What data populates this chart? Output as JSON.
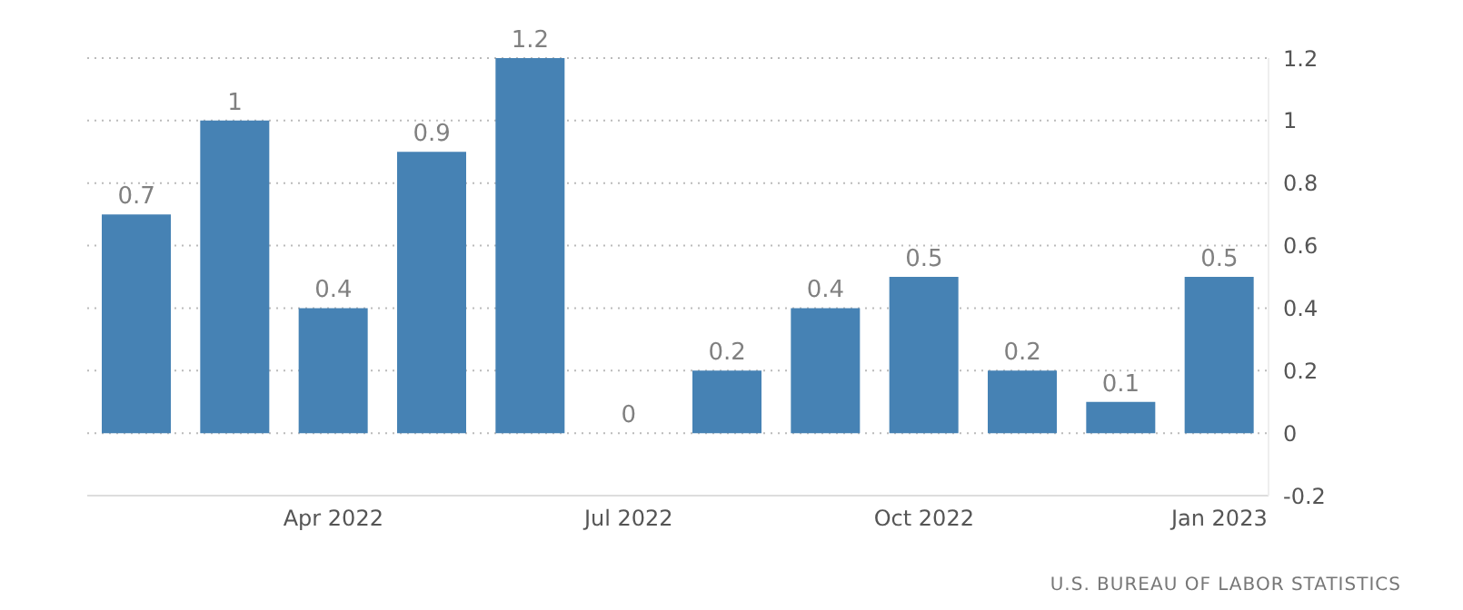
{
  "chart_data": {
    "type": "bar",
    "categories": [
      null,
      null,
      "Apr 2022",
      null,
      null,
      "Jul 2022",
      null,
      null,
      "Oct 2022",
      null,
      null,
      "Jan 2023"
    ],
    "values": [
      0.7,
      1,
      0.4,
      0.9,
      1.2,
      0,
      0.2,
      0.4,
      0.5,
      0.2,
      0.1,
      0.5
    ],
    "color": "#4682b4",
    "data_labels": true,
    "ylim": [
      -0.2,
      1.2
    ],
    "yticks": [
      -0.2,
      0,
      0.2,
      0.4,
      0.6,
      0.8,
      1,
      1.2
    ],
    "grid": "y",
    "annotations": [
      "U.S. BUREAU OF LABOR STATISTICS"
    ]
  }
}
